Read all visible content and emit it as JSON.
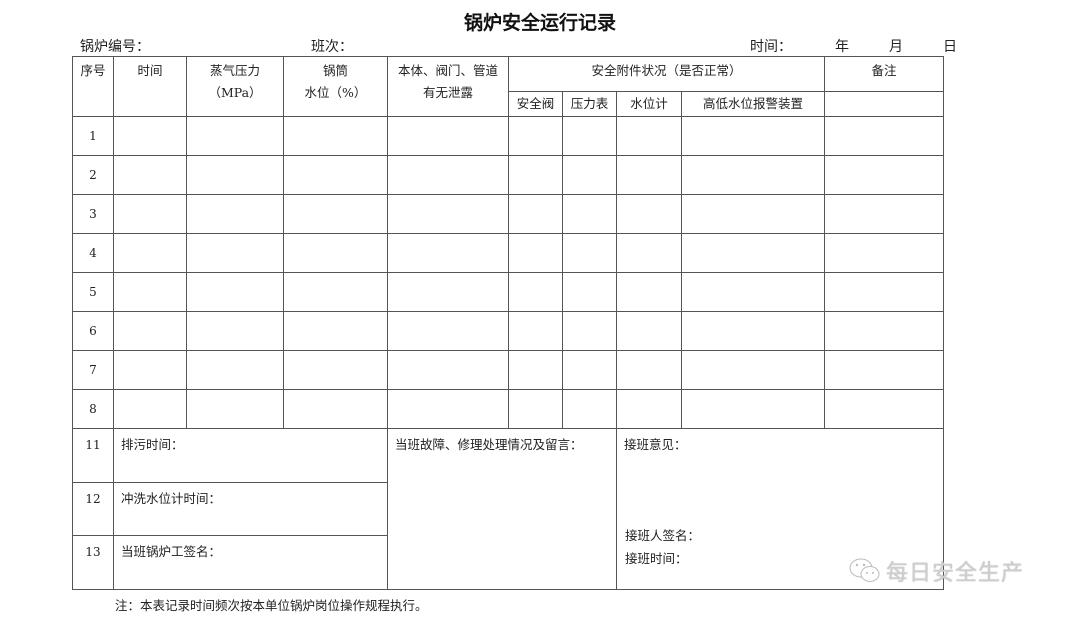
{
  "title": "锅炉安全运行记录",
  "meta": {
    "boiler_no": "锅炉编号：",
    "shift": "班次：",
    "time": "时间：",
    "year": "年",
    "month": "月",
    "day": "日"
  },
  "headers": {
    "seq": "序号",
    "time": "时间",
    "pressure": "蒸气压力",
    "pressure_unit": "（MPa）",
    "level": "锅筒",
    "level_unit": "水位（%）",
    "leak": "本体、阀门、管道",
    "leak2": "有无泄露",
    "safety": "安全附件状况（是否正常）",
    "safety_sub": [
      "安全阀",
      "压力表",
      "水位计",
      "高低水位报警装置"
    ],
    "remarks": "备注"
  },
  "rows": [
    "1",
    "2",
    "3",
    "4",
    "5",
    "6",
    "7",
    "8"
  ],
  "bottom": {
    "n11": "11",
    "blowdown": "排污时间：",
    "n12": "12",
    "flush": "冲洗水位计时间：",
    "n13": "13",
    "operator_sign": "当班锅炉工签名：",
    "faults": "当班故障、修理处理情况及留言：",
    "handover_opinion": "接班意见：",
    "handover_sign": "接班人签名：",
    "handover_time": "接班时间："
  },
  "note": "注：本表记录时间频次按本单位锅炉岗位操作规程执行。",
  "watermark": "每日安全生产"
}
